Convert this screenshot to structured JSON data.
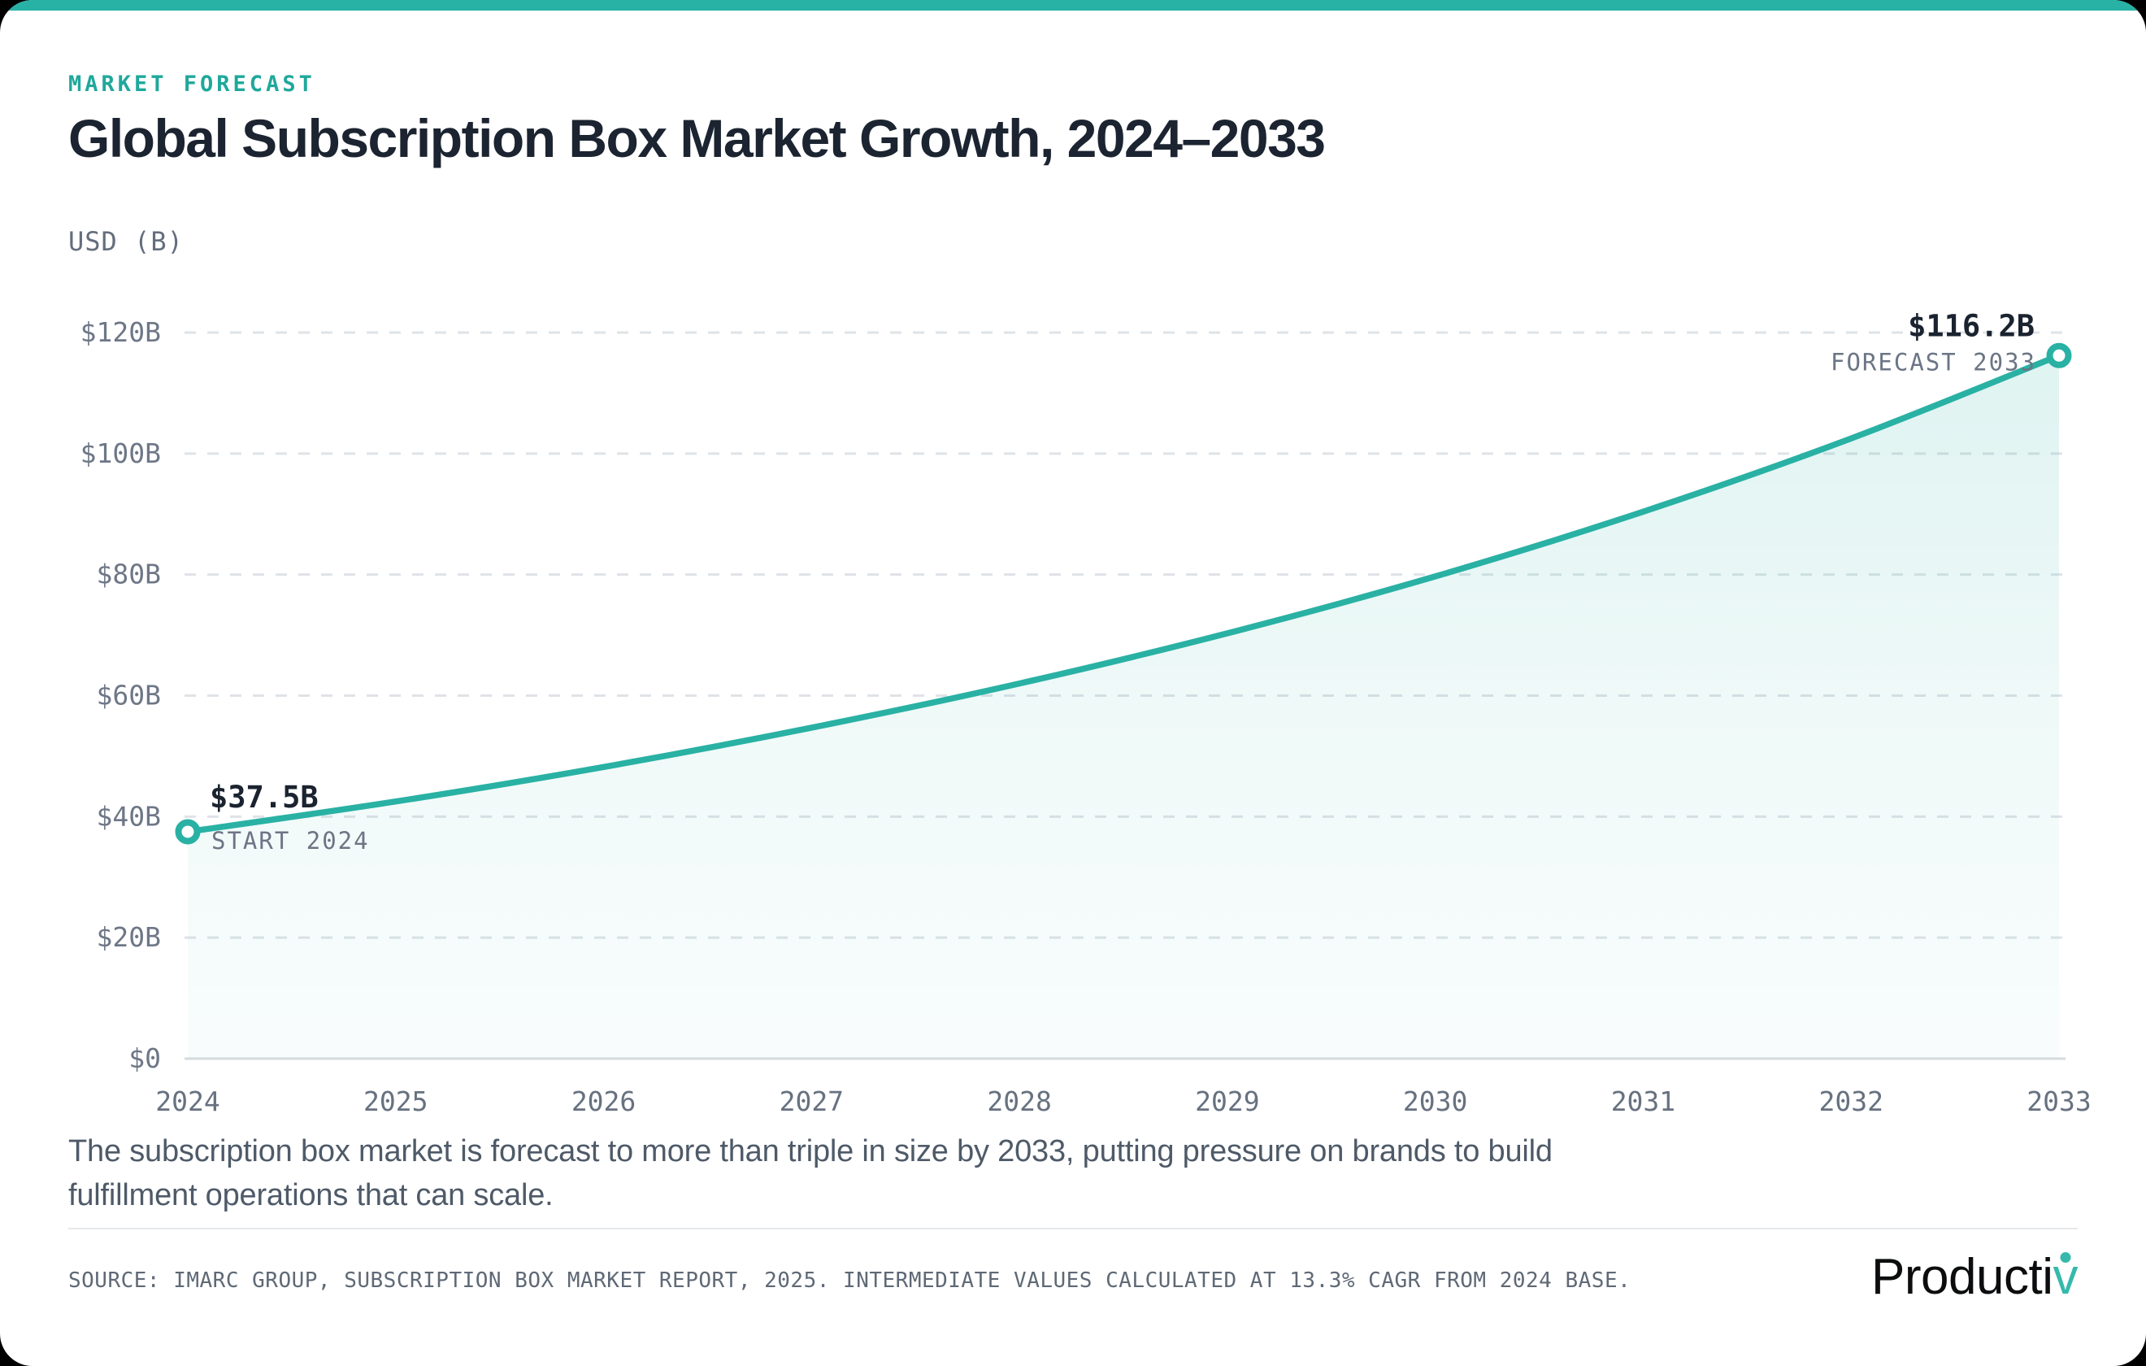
{
  "page": {
    "background_color": "#000000",
    "card_color": "#ffffff",
    "accent_color": "#28b1a5"
  },
  "header": {
    "eyebrow": "MARKET FORECAST",
    "title": "Global Subscription Box Market Growth, 2024–2033"
  },
  "chart_data": {
    "type": "area",
    "title": "Global Subscription Box Market Growth, 2024–2033",
    "xlabel": "",
    "ylabel": "USD (B)",
    "x": [
      2024,
      2025,
      2026,
      2027,
      2028,
      2029,
      2030,
      2031,
      2032,
      2033
    ],
    "values": [
      37.5,
      42.5,
      48.2,
      54.7,
      62.0,
      70.3,
      79.7,
      90.4,
      102.5,
      116.2
    ],
    "ylim": [
      0,
      120
    ],
    "grid": "horizontal dashed",
    "legend_position": "none",
    "line_color": "#29b1a4",
    "area_fill_color": "#29b1a4",
    "grid_color": "#dfe3e8",
    "baseline_color": "#d7dbdf",
    "y_ticks": [
      {
        "value": 0,
        "label": "$0"
      },
      {
        "value": 20,
        "label": "$20B"
      },
      {
        "value": 40,
        "label": "$40B"
      },
      {
        "value": 60,
        "label": "$60B"
      },
      {
        "value": 80,
        "label": "$80B"
      },
      {
        "value": 100,
        "label": "$100B"
      },
      {
        "value": 120,
        "label": "$120B"
      }
    ],
    "annotations": [
      {
        "year": 2024,
        "value": 37.5,
        "value_label": "$37.5B",
        "sub_label": "START 2024",
        "align": "start"
      },
      {
        "year": 2033,
        "value": 116.2,
        "value_label": "$116.2B",
        "sub_label": "FORECAST 2033",
        "align": "end"
      }
    ]
  },
  "caption": "The subscription box market is forecast to more than triple in size by 2033, putting pressure on brands to build fulfillment operations that can scale.",
  "footer": {
    "source": "SOURCE: IMARC GROUP, SUBSCRIPTION BOX MARKET REPORT, 2025. INTERMEDIATE VALUES CALCULATED AT 13.3% CAGR FROM 2024 BASE.",
    "logo_text": "Producti",
    "logo_accent_letter": "v"
  }
}
